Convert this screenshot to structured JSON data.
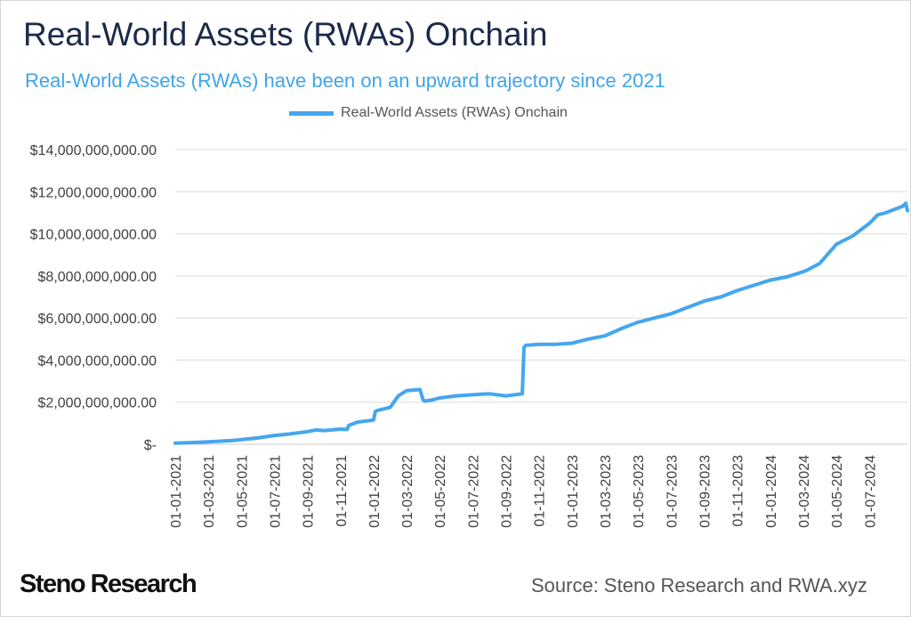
{
  "chart_data": {
    "type": "line",
    "title": "Real-World Assets (RWAs) Onchain",
    "subtitle": "Real-World Assets (RWAs) have been on an upward trajectory since 2021",
    "legend": "Real-World Assets (RWAs) Onchain",
    "legend_position": "top",
    "xlabel": "",
    "ylabel": "",
    "grid": true,
    "x_tick_labels": [
      "01-01-2021",
      "01-03-2021",
      "01-05-2021",
      "01-07-2021",
      "01-09-2021",
      "01-11-2021",
      "01-01-2022",
      "01-03-2022",
      "01-05-2022",
      "01-07-2022",
      "01-09-2022",
      "01-11-2022",
      "01-01-2023",
      "01-03-2023",
      "01-05-2023",
      "01-07-2023",
      "01-09-2023",
      "01-11-2023",
      "01-01-2024",
      "01-03-2024",
      "01-05-2024",
      "01-07-2024"
    ],
    "y_tick_values": [
      0,
      2000000000,
      4000000000,
      6000000000,
      8000000000,
      10000000000,
      12000000000,
      14000000000
    ],
    "y_tick_labels": [
      "$-",
      "$2,000,000,000.00",
      "$4,000,000,000.00",
      "$6,000,000,000.00",
      "$8,000,000,000.00",
      "$10,000,000,000.00",
      "$12,000,000,000.00",
      "$14,000,000,000.00"
    ],
    "ylim": [
      0,
      14000000000
    ],
    "x_unit": "months since 01-01-2021",
    "xlim": [
      0,
      44.3
    ],
    "series": [
      {
        "name": "Real-World Assets (RWAs) Onchain",
        "color": "#45a6ee",
        "x": [
          0,
          1,
          2,
          3,
          3.5,
          4,
          5,
          6,
          7,
          8,
          8.5,
          9,
          10,
          10.4,
          10.5,
          11,
          11.5,
          12,
          12.1,
          12.2,
          13,
          13.5,
          14,
          14.8,
          15,
          15.1,
          15.5,
          16,
          17,
          18,
          19,
          20,
          21,
          21.1,
          21.2,
          22,
          23,
          24,
          25,
          26,
          27,
          28,
          29,
          30,
          31,
          32,
          33,
          34,
          35,
          36,
          37,
          38,
          38.3,
          39,
          40,
          41,
          41.5,
          42,
          42.5,
          43,
          44,
          44.2,
          44.3
        ],
        "values": [
          50000000.0,
          80000000.0,
          120000000.0,
          160000000.0,
          180000000.0,
          220000000.0,
          300000000.0,
          420000000.0,
          500000000.0,
          600000000.0,
          680000000.0,
          650000000.0,
          720000000.0,
          700000000.0,
          900000000.0,
          1050000000.0,
          1100000000.0,
          1150000000.0,
          1550000000.0,
          1600000000.0,
          1750000000.0,
          2300000000.0,
          2550000000.0,
          2600000000.0,
          2100000000.0,
          2050000000.0,
          2100000000.0,
          2200000000.0,
          2300000000.0,
          2350000000.0,
          2400000000.0,
          2300000000.0,
          2400000000.0,
          4600000000.0,
          4700000000.0,
          4750000000.0,
          4750000000.0,
          4800000000.0,
          5000000000.0,
          5150000000.0,
          5500000000.0,
          5800000000.0,
          6000000000.0,
          6200000000.0,
          6500000000.0,
          6800000000.0,
          7000000000.0,
          7300000000.0,
          7550000000.0,
          7800000000.0,
          7950000000.0,
          8200000000.0,
          8300000000.0,
          8600000000.0,
          9500000000.0,
          9900000000.0,
          10200000000.0,
          10500000000.0,
          10900000000.0,
          11000000000.0,
          11300000000.0,
          11450000000.0,
          11100000000.0
        ]
      }
    ]
  },
  "footer": {
    "brand": "Steno Research",
    "source": "Source: Steno Research and RWA.xyz"
  }
}
